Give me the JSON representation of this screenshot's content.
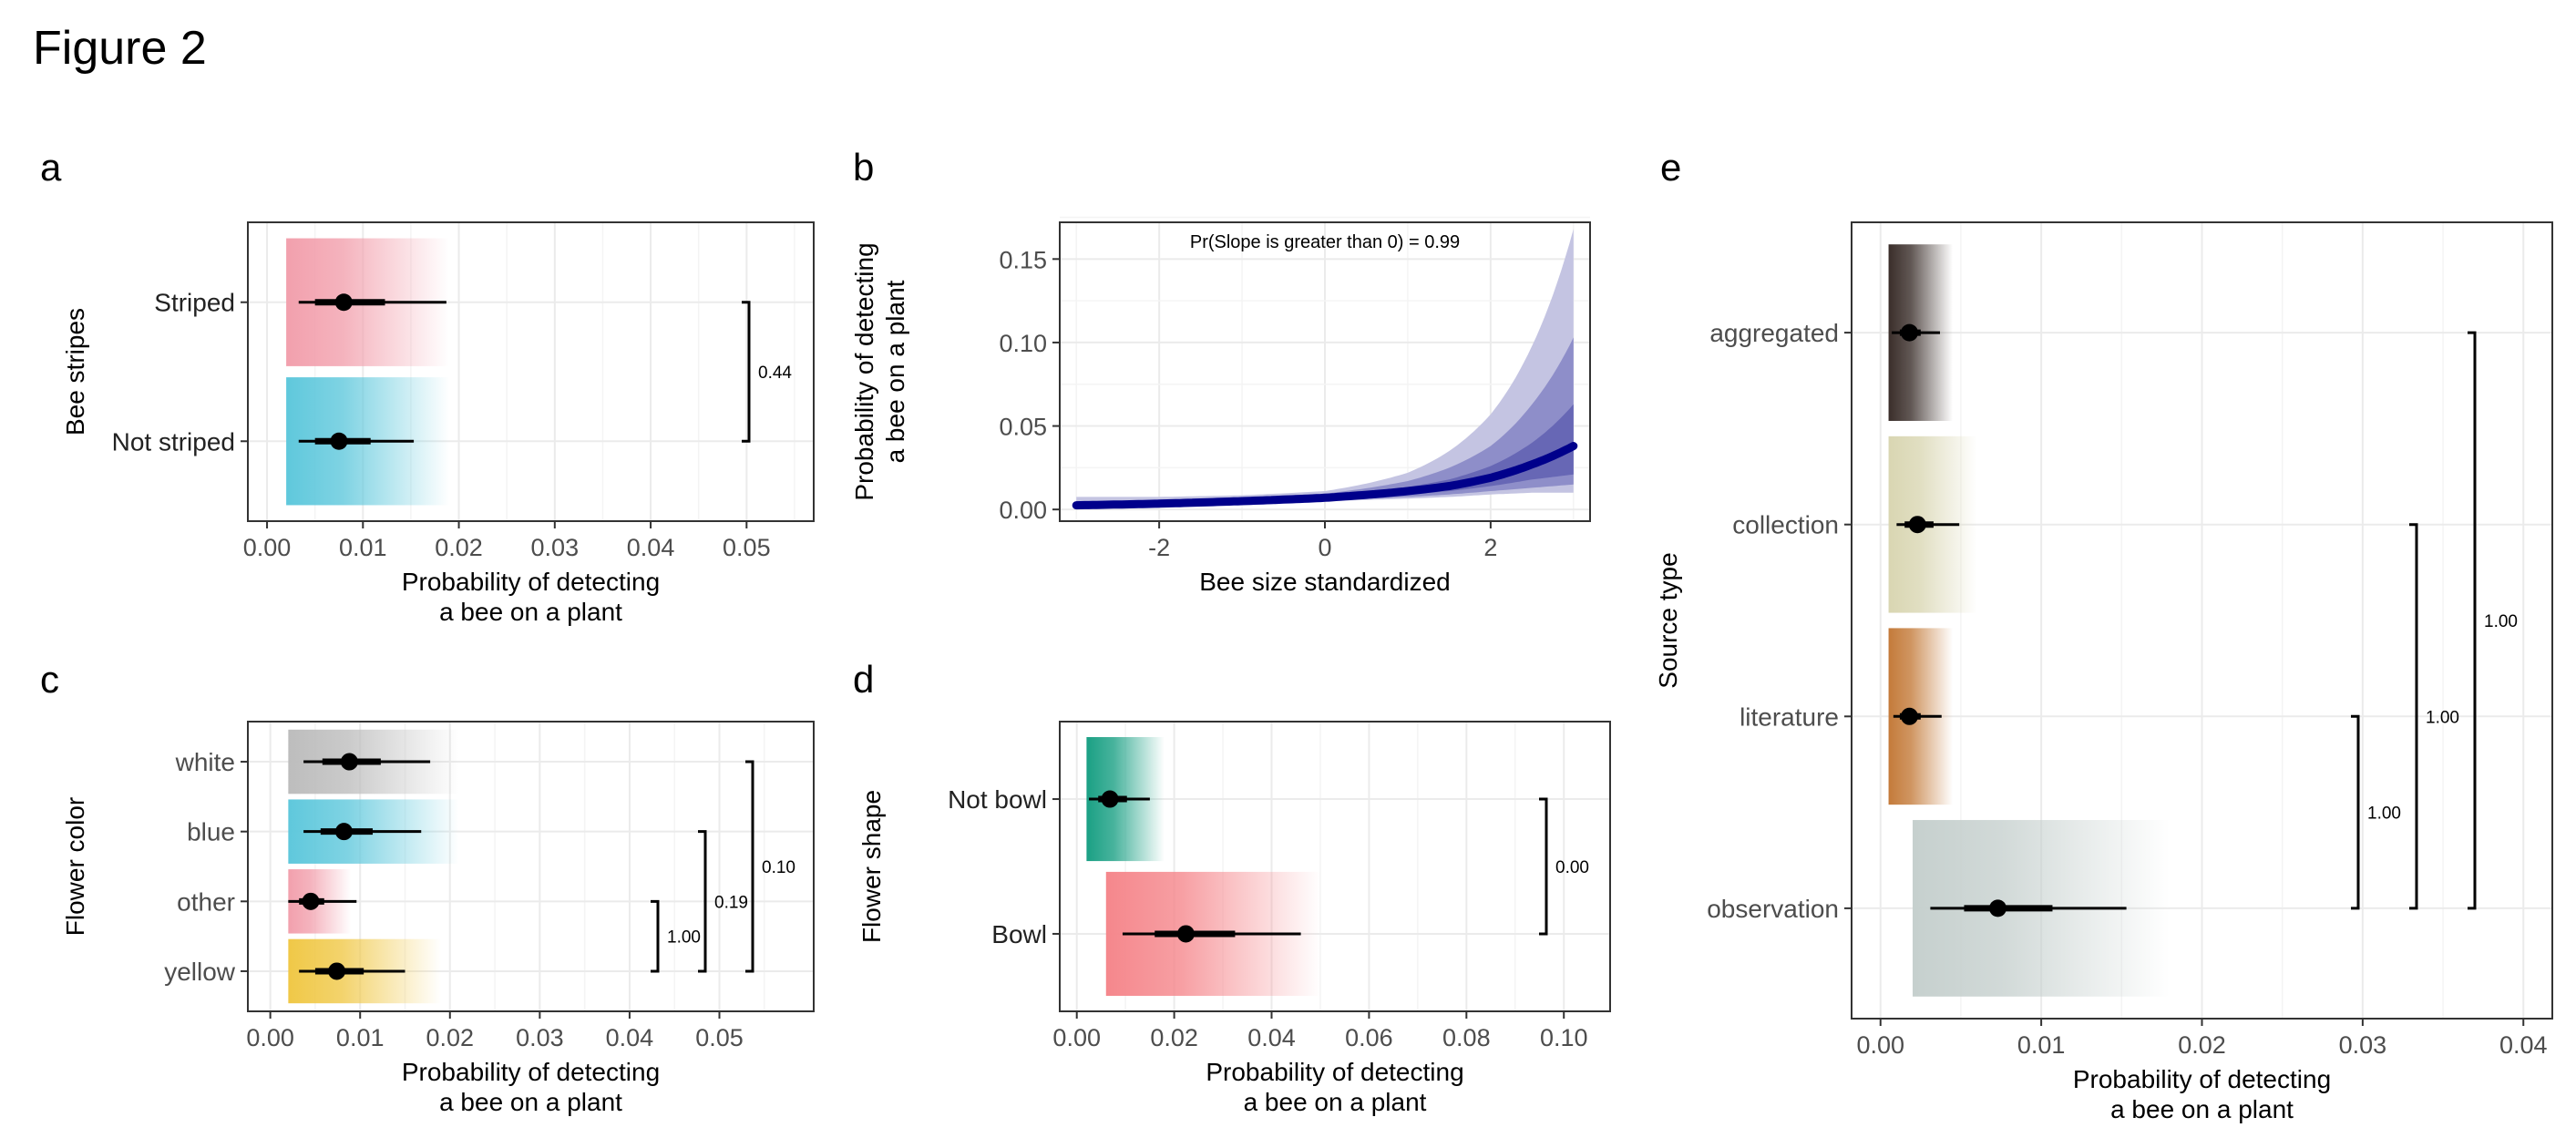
{
  "title": "Figure 2",
  "chart_data": [
    {
      "panel": "a",
      "type": "forest",
      "xlabel": "Probability of detecting\na bee on a plant",
      "ylabel": "Bee stripes",
      "xlim": [
        -0.002,
        0.057
      ],
      "xticks": [
        0.0,
        0.01,
        0.02,
        0.03,
        0.04,
        0.05
      ],
      "xtick_labels": [
        "0.00",
        "0.01",
        "0.02",
        "0.03",
        "0.04",
        "0.05"
      ],
      "grid": true,
      "categories": [
        {
          "label": "Striped",
          "median": 0.008,
          "inner": [
            0.005,
            0.0123
          ],
          "outer": [
            0.0033,
            0.0187
          ],
          "band": [
            0.002,
            0.019
          ],
          "color": "#f2a0ad"
        },
        {
          "label": "Not striped",
          "median": 0.0075,
          "inner": [
            0.005,
            0.0108
          ],
          "outer": [
            0.0033,
            0.0153
          ],
          "band": [
            0.002,
            0.019
          ],
          "color": "#5fc8dc"
        }
      ],
      "brackets": [
        {
          "from": "Striped",
          "to": "Not striped",
          "label": "0.44"
        }
      ]
    },
    {
      "panel": "b",
      "type": "line",
      "xlabel": "Bee size standardized",
      "ylabel": "Probability of detecting\na bee on a plant",
      "xlim": [
        -3.2,
        3.2
      ],
      "ylim": [
        -0.007,
        0.172
      ],
      "xticks": [
        -2,
        0,
        2
      ],
      "xtick_labels": [
        "-2",
        "0",
        "2"
      ],
      "yticks": [
        0.0,
        0.05,
        0.1,
        0.15
      ],
      "ytick_labels": [
        "0.00",
        "0.05",
        "0.10",
        "0.15"
      ],
      "grid": true,
      "annotation": "Pr(Slope is greater than 0) = 0.99",
      "series": [
        {
          "x": [
            -3,
            -2,
            -1,
            0,
            1,
            1.5,
            2,
            2.5,
            3
          ],
          "median": [
            0.0025,
            0.0035,
            0.005,
            0.007,
            0.011,
            0.014,
            0.019,
            0.027,
            0.038
          ],
          "band_50": [
            [
              0.0015,
              0.0035
            ],
            [
              0.0025,
              0.0045
            ],
            [
              0.004,
              0.006
            ],
            [
              0.006,
              0.008
            ],
            [
              0.009,
              0.0135
            ],
            [
              0.011,
              0.018
            ],
            [
              0.014,
              0.026
            ],
            [
              0.018,
              0.04
            ],
            [
              0.021,
              0.063
            ]
          ],
          "band_80": [
            [
              0.001,
              0.005
            ],
            [
              0.002,
              0.0055
            ],
            [
              0.0035,
              0.0072
            ],
            [
              0.0055,
              0.0095
            ],
            [
              0.0075,
              0.017
            ],
            [
              0.009,
              0.025
            ],
            [
              0.011,
              0.038
            ],
            [
              0.013,
              0.063
            ],
            [
              0.015,
              0.103
            ]
          ],
          "band_95": [
            [
              0.0005,
              0.0075
            ],
            [
              0.0015,
              0.0075
            ],
            [
              0.003,
              0.0085
            ],
            [
              0.005,
              0.011
            ],
            [
              0.0065,
              0.022
            ],
            [
              0.0075,
              0.035
            ],
            [
              0.009,
              0.057
            ],
            [
              0.01,
              0.098
            ],
            [
              0.01,
              0.168
            ]
          ],
          "colors": {
            "line": "#00008b",
            "band_50": "#6767b5",
            "band_80": "#8e8ec9",
            "band_95": "#c4c4e2"
          }
        }
      ]
    },
    {
      "panel": "c",
      "type": "forest",
      "xlabel": "Probability of detecting\na bee on a plant",
      "ylabel": "Flower color",
      "xlim": [
        -0.0025,
        0.0605
      ],
      "xticks": [
        0.0,
        0.01,
        0.02,
        0.03,
        0.04,
        0.05
      ],
      "xtick_labels": [
        "0.00",
        "0.01",
        "0.02",
        "0.03",
        "0.04",
        "0.05"
      ],
      "grid": true,
      "categories": [
        {
          "label": "white",
          "median": 0.0088,
          "inner": [
            0.0058,
            0.0123
          ],
          "outer": [
            0.0037,
            0.0178
          ],
          "band": [
            0.002,
            0.021
          ],
          "color": "#bdbdbd"
        },
        {
          "label": "blue",
          "median": 0.0082,
          "inner": [
            0.0056,
            0.0114
          ],
          "outer": [
            0.0037,
            0.0168
          ],
          "band": [
            0.002,
            0.021
          ],
          "color": "#5fc8dc"
        },
        {
          "label": "other",
          "median": 0.0045,
          "inner": [
            0.0032,
            0.006
          ],
          "outer": [
            0.002,
            0.0096
          ],
          "band": [
            0.002,
            0.009
          ],
          "color": "#f2a0ad"
        },
        {
          "label": "yellow",
          "median": 0.0074,
          "inner": [
            0.005,
            0.0104
          ],
          "outer": [
            0.0032,
            0.015
          ],
          "band": [
            0.002,
            0.019
          ],
          "color": "#f0c847"
        }
      ],
      "brackets": [
        {
          "from": "other",
          "to": "yellow",
          "label": "1.00"
        },
        {
          "from": "blue",
          "to": "yellow",
          "label": "0.19"
        },
        {
          "from": "white",
          "to": "yellow",
          "label": "0.10"
        }
      ]
    },
    {
      "panel": "d",
      "type": "forest",
      "xlabel": "Probability of detecting\na bee on a plant",
      "ylabel": "Flower shape",
      "xlim": [
        -0.0035,
        0.1095
      ],
      "xticks": [
        0.0,
        0.02,
        0.04,
        0.06,
        0.08,
        0.1
      ],
      "xtick_labels": [
        "0.00",
        "0.02",
        "0.04",
        "0.06",
        "0.08",
        "0.10"
      ],
      "grid": true,
      "categories": [
        {
          "label": "Not bowl",
          "median": 0.0068,
          "inner": [
            0.0044,
            0.0103
          ],
          "outer": [
            0.0025,
            0.015
          ],
          "band": [
            0.002,
            0.018
          ],
          "color": "#1aa084"
        },
        {
          "label": "Bowl",
          "median": 0.0224,
          "inner": [
            0.016,
            0.0325
          ],
          "outer": [
            0.0094,
            0.046
          ],
          "band": [
            0.006,
            0.05
          ],
          "color": "#f5878c"
        }
      ],
      "brackets": [
        {
          "from": "Not bowl",
          "to": "Bowl",
          "label": "0.00"
        }
      ]
    },
    {
      "panel": "e",
      "type": "forest",
      "xlabel": "Probability of detecting\na bee on a plant",
      "ylabel": "Source type",
      "xlim": [
        -0.0018,
        0.0418
      ],
      "xticks": [
        0.0,
        0.01,
        0.02,
        0.03,
        0.04
      ],
      "xtick_labels": [
        "0.00",
        "0.01",
        "0.02",
        "0.03",
        "0.04"
      ],
      "grid": true,
      "categories": [
        {
          "label": "aggregated",
          "median": 0.0018,
          "inner": [
            0.0012,
            0.0025
          ],
          "outer": [
            0.0007,
            0.0037
          ],
          "band": [
            0.0005,
            0.0045
          ],
          "color": "#3a2e2a"
        },
        {
          "label": "collection",
          "median": 0.0023,
          "inner": [
            0.0015,
            0.0033
          ],
          "outer": [
            0.001,
            0.0049
          ],
          "band": [
            0.0005,
            0.006
          ],
          "color": "#d9d6b2"
        },
        {
          "label": "literature",
          "median": 0.0018,
          "inner": [
            0.0012,
            0.0025
          ],
          "outer": [
            0.0008,
            0.0038
          ],
          "band": [
            0.0005,
            0.0045
          ],
          "color": "#c47b3a"
        },
        {
          "label": "observation",
          "median": 0.0073,
          "inner": [
            0.0052,
            0.0107
          ],
          "outer": [
            0.0031,
            0.0153
          ],
          "band": [
            0.002,
            0.018
          ],
          "color": "#c6d0ce"
        }
      ],
      "brackets": [
        {
          "from": "literature",
          "to": "observation",
          "label": "1.00"
        },
        {
          "from": "collection",
          "to": "observation",
          "label": "1.00"
        },
        {
          "from": "aggregated",
          "to": "observation",
          "label": "1.00"
        }
      ]
    }
  ]
}
